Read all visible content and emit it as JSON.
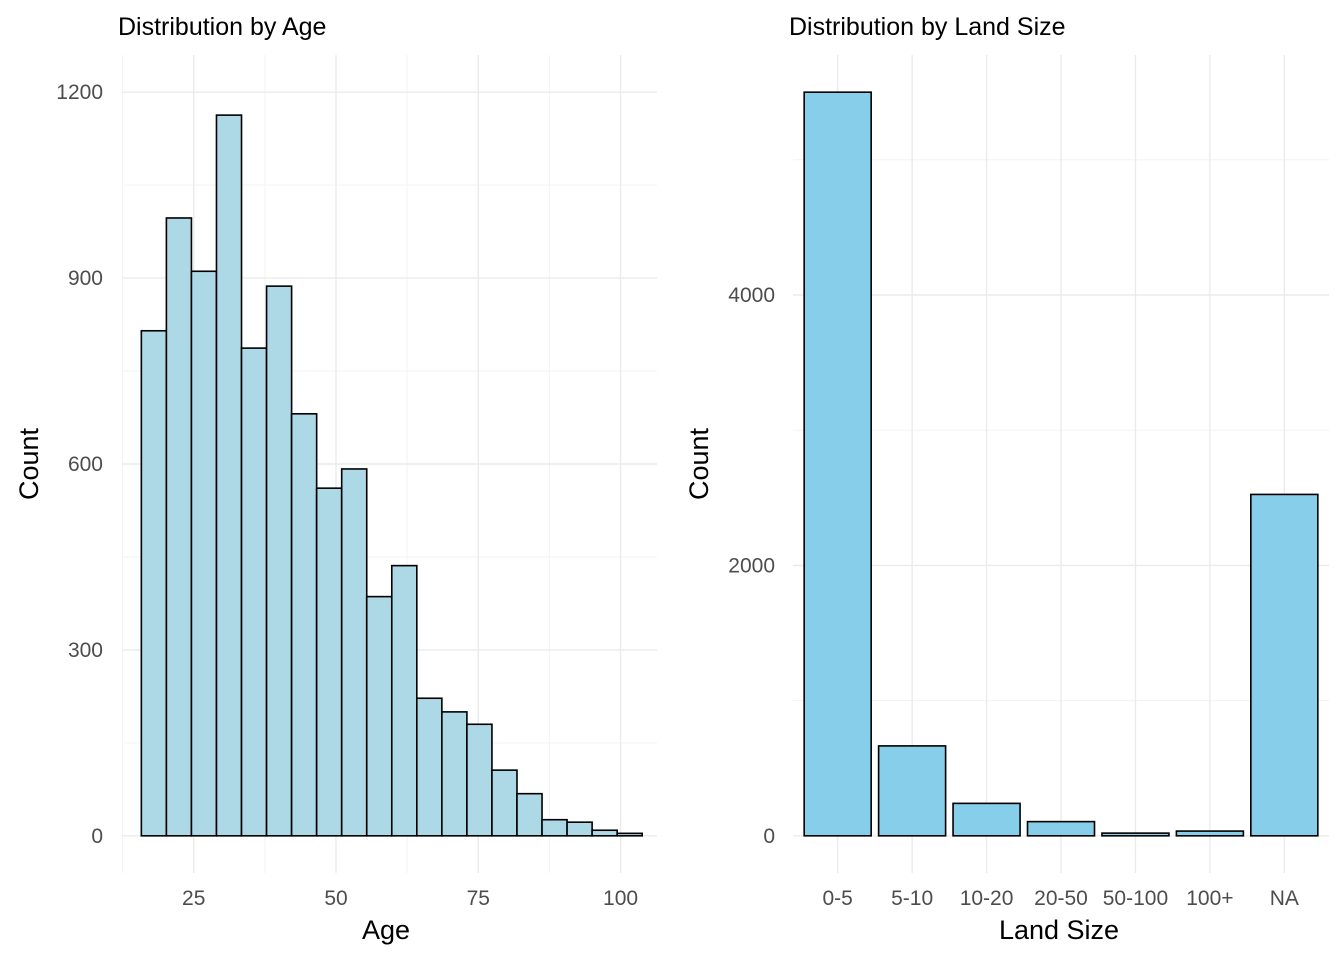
{
  "chart_data": [
    {
      "type": "bar",
      "title": "Distribution by Age",
      "xlabel": "Age",
      "ylabel": "Count",
      "x_ticks": [
        25,
        50,
        75,
        100
      ],
      "y_ticks": [
        0,
        300,
        600,
        900,
        1200
      ],
      "xlim": [
        12.4,
        106.4
      ],
      "ylim": [
        -60,
        1260
      ],
      "grid": true,
      "fill_color": "#add8e6",
      "outline_color": "#000000",
      "bin_width": 4.4,
      "bins": [
        {
          "start": 15.8,
          "end": 20.2,
          "count": 815
        },
        {
          "start": 20.2,
          "end": 24.6,
          "count": 997
        },
        {
          "start": 24.6,
          "end": 29.0,
          "count": 911
        },
        {
          "start": 29.0,
          "end": 33.4,
          "count": 1163
        },
        {
          "start": 33.4,
          "end": 37.8,
          "count": 787
        },
        {
          "start": 37.8,
          "end": 42.2,
          "count": 887
        },
        {
          "start": 42.2,
          "end": 46.6,
          "count": 681
        },
        {
          "start": 46.6,
          "end": 51.0,
          "count": 561
        },
        {
          "start": 51.0,
          "end": 55.4,
          "count": 592
        },
        {
          "start": 55.4,
          "end": 59.8,
          "count": 386
        },
        {
          "start": 59.8,
          "end": 64.2,
          "count": 436
        },
        {
          "start": 64.2,
          "end": 68.6,
          "count": 222
        },
        {
          "start": 68.6,
          "end": 73.0,
          "count": 200
        },
        {
          "start": 73.0,
          "end": 77.4,
          "count": 180
        },
        {
          "start": 77.4,
          "end": 81.8,
          "count": 106
        },
        {
          "start": 81.8,
          "end": 86.2,
          "count": 68
        },
        {
          "start": 86.2,
          "end": 90.6,
          "count": 26
        },
        {
          "start": 90.6,
          "end": 95.0,
          "count": 22
        },
        {
          "start": 95.0,
          "end": 99.4,
          "count": 9
        },
        {
          "start": 99.4,
          "end": 103.8,
          "count": 4
        }
      ]
    },
    {
      "type": "bar",
      "title": "Distribution by Land Size",
      "xlabel": "Land Size",
      "ylabel": "Count",
      "categories": [
        "0-5",
        "5-10",
        "10-20",
        "20-50",
        "50-100",
        "100+",
        "NA"
      ],
      "values": [
        5500,
        665,
        240,
        105,
        20,
        35,
        2525
      ],
      "y_ticks": [
        0,
        2000,
        4000
      ],
      "ylim": [
        -275,
        5775
      ],
      "grid": true,
      "fill_color": "#87ceeb",
      "outline_color": "#000000"
    }
  ]
}
